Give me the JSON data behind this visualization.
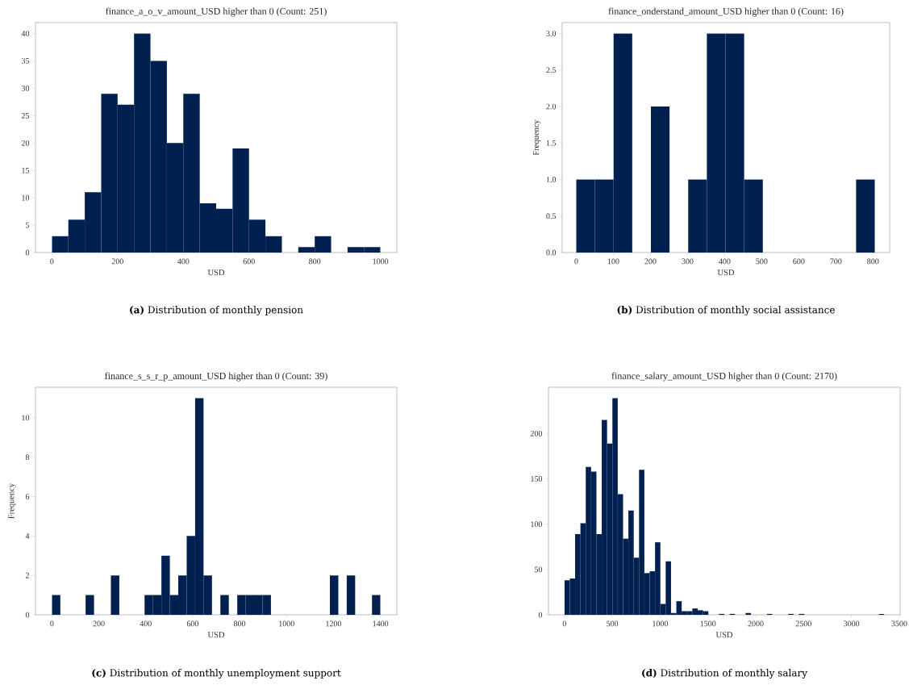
{
  "chart_data": [
    {
      "type": "histogram",
      "title": "finance_a_o_v_amount_USD higher than 0 (Count: 251)",
      "xlabel": "USD",
      "annotations": [
        "**(a)** Distribution of monthly pension"
      ],
      "color": "#002050",
      "bins": [
        0,
        50,
        100,
        150,
        200,
        250,
        300,
        350,
        400,
        450,
        500,
        550,
        600,
        650,
        700,
        750,
        800,
        850,
        900,
        950,
        1000
      ],
      "values": [
        3,
        6,
        11,
        29,
        27,
        40,
        35,
        20,
        29,
        9,
        8,
        19,
        6,
        3,
        0,
        1,
        3,
        0,
        1,
        1
      ],
      "xlim": [
        -50,
        1050
      ],
      "ylim": [
        0,
        42
      ],
      "xticks": [
        0,
        200,
        400,
        600,
        800,
        1000
      ],
      "yticks": [
        0,
        5,
        10,
        15,
        20,
        25,
        30,
        35,
        40
      ],
      "grid": false
    },
    {
      "type": "histogram",
      "title": "finance_onderstand_amount_USD higher than 0 (Count: 16)",
      "xlabel": "USD",
      "ylabel": "Frequency",
      "annotations": [
        "**(b)** Distribution of monthly social assistance"
      ],
      "color": "#002050",
      "bins": [
        0,
        50.3,
        100.6,
        150.9,
        201.2,
        251.5,
        301.8,
        352.1,
        402.4,
        452.7,
        503,
        553.3,
        603.6,
        653.9,
        704.2,
        754.5,
        804.8
      ],
      "values": [
        1,
        1,
        3,
        0,
        2,
        0,
        1,
        3,
        3,
        1,
        0,
        0,
        0,
        0,
        0,
        1
      ],
      "xlim": [
        -38,
        845
      ],
      "ylim": [
        0,
        3.15
      ],
      "xticks": [
        0,
        100,
        200,
        300,
        400,
        500,
        600,
        700,
        800
      ],
      "yticks": [
        {
          "value": 0,
          "label": "0.0"
        },
        {
          "value": 0.5,
          "label": "0.5"
        },
        {
          "value": 1,
          "label": "1.0"
        },
        {
          "value": 1.5,
          "label": "1.5"
        },
        {
          "value": 2,
          "label": "2.0"
        },
        {
          "value": 2.5,
          "label": "2.5"
        },
        {
          "value": 3,
          "label": "3.0"
        }
      ],
      "grid": false
    },
    {
      "type": "histogram",
      "title": "finance_s_s_r_p_amount_USD higher than 0 (Count: 39)",
      "xlabel": "USD",
      "ylabel": "Frequency",
      "annotations": [
        "**(c)** Distribution of monthly unemployment support"
      ],
      "color": "#002050",
      "bins": [
        0,
        35.9,
        71.8,
        107.7,
        143.6,
        179.5,
        215.4,
        251.3,
        287.2,
        323.1,
        359,
        394.9,
        430.8,
        466.7,
        502.6,
        538.5,
        574.4,
        610.3,
        646.2,
        682.1,
        718,
        753.9,
        789.8,
        825.7,
        861.6,
        897.5,
        933.4,
        969.3,
        1005.2,
        1041.1,
        1077,
        1112.9,
        1148.8,
        1184.7,
        1220.6,
        1256.5,
        1292.4,
        1328.3,
        1364.2,
        1400.1
      ],
      "values": [
        1,
        0,
        0,
        0,
        1,
        0,
        0,
        2,
        0,
        0,
        0,
        1,
        1,
        3,
        1,
        2,
        4,
        11,
        2,
        0,
        1,
        0,
        1,
        1,
        1,
        1,
        0,
        0,
        0,
        0,
        0,
        0,
        0,
        2,
        0,
        2,
        0,
        0,
        1
      ],
      "xlim": [
        -70,
        1470
      ],
      "ylim": [
        0,
        11.55
      ],
      "xticks": [
        0,
        200,
        400,
        600,
        800,
        1000,
        1200,
        1400
      ],
      "yticks": [
        0,
        2,
        4,
        6,
        8,
        10
      ],
      "grid": false
    },
    {
      "type": "histogram",
      "title": "finance_salary_amount_USD higher than 0 (Count: 2170)",
      "xlabel": "USD",
      "annotations": [
        "**(d)** Distribution of monthly salary"
      ],
      "color": "#002050",
      "bins": [
        0,
        55.7,
        111.4,
        167.1,
        222.8,
        278.5,
        334.2,
        389.9,
        445.6,
        501.3,
        557,
        612.7,
        668.4,
        724.1,
        779.8,
        835.5,
        891.2,
        946.9,
        1002.6,
        1058.3,
        1114,
        1169.7,
        1225.4,
        1281.1,
        1336.8,
        1392.5,
        1448.2,
        1503.9,
        1559.6,
        1615.3,
        1671,
        1726.7,
        1782.4,
        1838.1,
        1893.8,
        1949.5,
        2005.2,
        2060.9,
        2116.6,
        2172.3,
        2228,
        2283.7,
        2339.4,
        2395.1,
        2450.8,
        2506.5,
        2562.2,
        2617.9,
        2673.6,
        2729.3,
        2785,
        2840.7,
        2896.4,
        2952.1,
        3007.8,
        3063.5,
        3119.2,
        3174.9,
        3230.6,
        3286.3,
        3342
      ],
      "values": [
        38,
        40,
        89,
        101,
        163,
        158,
        89,
        215,
        189,
        239,
        133,
        84,
        115,
        63,
        160,
        46,
        48,
        80,
        12,
        59,
        2,
        15,
        4,
        4,
        7,
        5,
        4,
        0,
        0,
        1,
        0,
        1,
        0,
        0,
        2,
        0,
        0,
        0,
        1,
        0,
        0,
        0,
        1,
        0,
        1,
        0,
        0,
        0,
        0,
        0,
        0,
        0,
        0,
        0,
        0,
        0,
        0,
        0,
        0,
        1
      ],
      "xlim": [
        -167,
        3509
      ],
      "ylim": [
        0,
        251
      ],
      "xticks": [
        0,
        500,
        1000,
        1500,
        2000,
        2500,
        3000,
        3500
      ],
      "yticks": [
        0,
        50,
        100,
        150,
        200
      ],
      "grid": false
    }
  ]
}
